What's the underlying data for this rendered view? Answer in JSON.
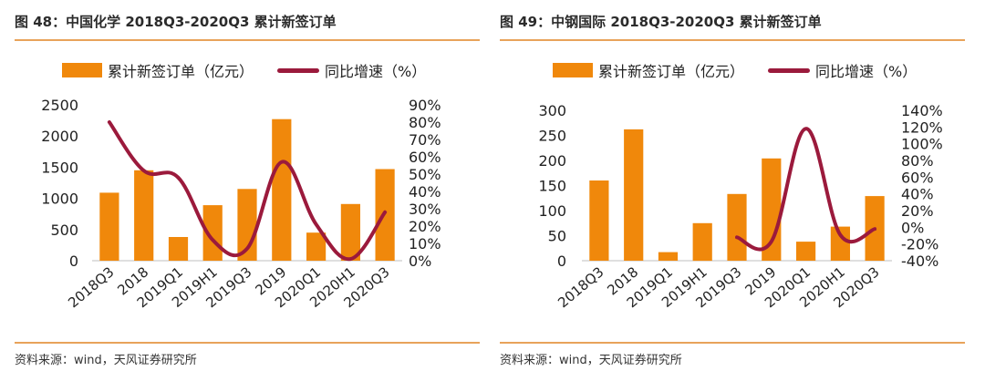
{
  "figures": [
    {
      "title": "图 48：中国化学 2018Q3-2020Q3 累计新签订单",
      "source": "资料来源：wind，天风证券研究所",
      "legend": {
        "bar_label": "累计新签订单（亿元）",
        "line_label": "同比增速（%）"
      },
      "colors": {
        "bar": "#f0880b",
        "line": "#9b1a3c"
      }
    },
    {
      "title": "图 49：中钢国际 2018Q3-2020Q3 累计新签订单",
      "source": "资料来源：wind，天风证券研究所",
      "legend": {
        "bar_label": "累计新签订单（亿元）",
        "line_label": "同比增速（%）"
      },
      "colors": {
        "bar": "#f0880b",
        "line": "#9b1a3c"
      }
    }
  ],
  "chart_data": [
    {
      "type": "bar+line",
      "categories": [
        "2018Q3",
        "2018",
        "2019Q1",
        "2019H1",
        "2019Q3",
        "2019",
        "2020Q1",
        "2020H1",
        "2020Q3"
      ],
      "series": [
        {
          "name": "累计新签订单（亿元）",
          "type": "bar",
          "axis": "left",
          "values": [
            1090,
            1450,
            380,
            890,
            1150,
            2270,
            450,
            910,
            1470
          ]
        },
        {
          "name": "同比增速（%）",
          "type": "line",
          "axis": "right",
          "values": [
            80,
            52,
            48,
            12,
            7,
            57,
            21,
            1,
            28
          ]
        }
      ],
      "y_left": {
        "min": 0,
        "max": 2500,
        "ticks": [
          0,
          500,
          1000,
          1500,
          2000,
          2500
        ]
      },
      "y_right": {
        "min": 0,
        "max": 90,
        "ticks": [
          0,
          10,
          20,
          30,
          40,
          50,
          60,
          70,
          80,
          90
        ],
        "unit": "%"
      },
      "legend_position": "top",
      "grid": false
    },
    {
      "type": "bar+line",
      "categories": [
        "2018Q3",
        "2018",
        "2019Q1",
        "2019H1",
        "2019Q3",
        "2019",
        "2020Q1",
        "2020H1",
        "2020Q3"
      ],
      "series": [
        {
          "name": "累计新签订单（亿元）",
          "type": "bar",
          "axis": "left",
          "values": [
            160,
            262,
            17,
            75,
            133,
            204,
            38,
            68,
            129
          ]
        },
        {
          "name": "同比增速（%）",
          "type": "line",
          "axis": "right",
          "values": [
            null,
            null,
            null,
            null,
            -12,
            -17,
            118,
            -9,
            -2
          ]
        }
      ],
      "y_left": {
        "min": 0,
        "max": 300,
        "ticks": [
          0,
          50,
          100,
          150,
          200,
          250,
          300
        ]
      },
      "y_right": {
        "min": -40,
        "max": 140,
        "ticks": [
          -40,
          -20,
          0,
          20,
          40,
          60,
          80,
          100,
          120,
          140
        ],
        "unit": "%"
      },
      "legend_position": "top",
      "grid": false
    }
  ]
}
